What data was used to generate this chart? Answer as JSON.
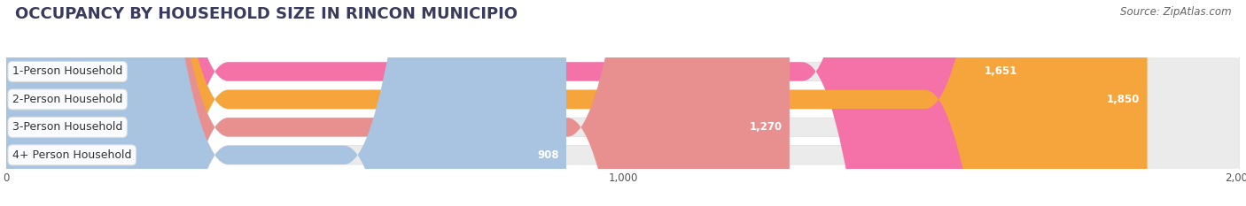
{
  "title": "OCCUPANCY BY HOUSEHOLD SIZE IN RINCON MUNICIPIO",
  "source": "Source: ZipAtlas.com",
  "categories": [
    "1-Person Household",
    "2-Person Household",
    "3-Person Household",
    "4+ Person Household"
  ],
  "values": [
    1651,
    1850,
    1270,
    908
  ],
  "bar_colors": [
    "#F472A8",
    "#F5A53C",
    "#E89090",
    "#A8C4E0"
  ],
  "background_color": "#ffffff",
  "container_color": "#eeeeee",
  "xlim": [
    0,
    2000
  ],
  "xticks": [
    0,
    1000,
    2000
  ],
  "title_fontsize": 13,
  "label_fontsize": 9,
  "value_fontsize": 8.5,
  "source_fontsize": 8.5
}
